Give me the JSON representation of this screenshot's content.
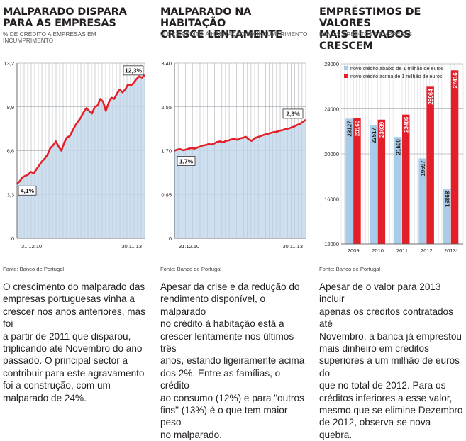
{
  "panels": [
    {
      "title_line1": "MALPARADO DISPARA",
      "title_line2": "PARA AS EMPRESAS",
      "subtitle": "% DE CRÉDITO A EMPRESAS EM INCUMPRIMENTO",
      "source": "Fonte: Banco de Portugal",
      "body": [
        "O crescimento do malparado das",
        "empresas portuguesas vinha a",
        "crescer nos anos anteriores, mas foi",
        "a partir de 2011 que disparou,",
        "triplicando até Novembro do ano",
        "passado. O principal sector a",
        "contribuir para este agravamento",
        "foi a construção, com um",
        "malparado de 24%."
      ]
    },
    {
      "title_line1": "MALPARADO NA HABITAÇÃO",
      "title_line2": "CRESCE LENTAMENTE",
      "subtitle": "% DE CRÉDITO À HABITAÇÃO EM INCUMPRIMENTO",
      "source": "Fonte: Banco de Portugal",
      "body": [
        "Apesar da crise e da redução do",
        "rendimento disponível, o malparado",
        "no crédito à habitação está a",
        "crescer lentamente nos últimos três",
        "anos, estando ligeiramente acima",
        "dos 2%. Entre as famílias, o crédito",
        "ao consumo (12%) e para \"outros",
        "fins\" (13%) é o que tem maior peso",
        "no malparado."
      ]
    },
    {
      "title_line1": "EMPRÉSTIMOS DE VALORES",
      "title_line2": "MAIS ELEVADOS CRESCEM",
      "subtitle": "NOVOS CRÉDITOS A EMPRESAS",
      "source": "Fonte: Banco de Portugal",
      "body": [
        "Apesar de o valor para 2013 incluir",
        "apenas os créditos contratados até",
        "Novembro, a banca já emprestou",
        "mais dinheiro em créditos",
        "superiores a um milhão de euros do",
        "que no total de 2012. Para os",
        "créditos inferiores a esse valor,",
        "mesmo que se elimine Dezembro",
        "de 2012, observa-se nova quebra."
      ]
    }
  ],
  "colors": {
    "red": "#e3202a",
    "area": "#c6d9ec",
    "blue": "#a9cde9",
    "grid": "#b5b9be",
    "text": "#231f20"
  },
  "chart_data": [
    {
      "type": "area",
      "title": "MALPARADO DISPARA PARA AS EMPRESAS",
      "ylabel": "% DE CRÉDITO A EMPRESAS EM INCUMPRIMENTO",
      "ylim": [
        0,
        13.2
      ],
      "yticks": [
        "13,2",
        "9,9",
        "6,6",
        "3,3",
        "0"
      ],
      "yticks_values": [
        13.2,
        9.9,
        6.6,
        3.3,
        0
      ],
      "x_start_label": "31.12.10",
      "x_end_label": "30.11.13",
      "grid": true,
      "values": [
        4.1,
        4.3,
        4.6,
        4.7,
        4.8,
        5.0,
        4.9,
        5.2,
        5.5,
        5.8,
        6.0,
        6.3,
        6.8,
        7.0,
        7.3,
        6.9,
        6.6,
        7.2,
        7.6,
        7.7,
        8.1,
        8.5,
        8.8,
        9.1,
        9.5,
        9.8,
        9.6,
        9.4,
        9.9,
        10.0,
        10.5,
        10.3,
        9.6,
        10.2,
        10.6,
        10.5,
        10.9,
        11.2,
        11.0,
        11.2,
        11.6,
        11.5,
        11.7,
        12.0,
        12.2,
        12.1,
        12.3
      ],
      "start_label": "4,1%",
      "end_label": "12,3%"
    },
    {
      "type": "area",
      "title": "MALPARADO NA HABITAÇÃO CRESCE LENTAMENTE",
      "ylabel": "% DE CRÉDITO À HABITAÇÃO EM INCUMPRIMENTO",
      "ylim": [
        0,
        3.4
      ],
      "yticks": [
        "3,40",
        "2,55",
        "1,70",
        "0,85",
        "0"
      ],
      "yticks_values": [
        3.4,
        2.55,
        1.7,
        0.85,
        0
      ],
      "x_start_label": "31.12.10",
      "x_end_label": "30.11.13",
      "grid": true,
      "values": [
        1.7,
        1.72,
        1.73,
        1.71,
        1.72,
        1.74,
        1.75,
        1.74,
        1.76,
        1.78,
        1.8,
        1.81,
        1.83,
        1.82,
        1.84,
        1.87,
        1.88,
        1.86,
        1.89,
        1.9,
        1.92,
        1.93,
        1.91,
        1.94,
        1.95,
        1.97,
        1.92,
        1.89,
        1.94,
        1.96,
        1.98,
        2.0,
        2.02,
        2.03,
        2.05,
        2.06,
        2.07,
        2.09,
        2.1,
        2.12,
        2.13,
        2.15,
        2.17,
        2.2,
        2.22,
        2.26,
        2.3
      ],
      "start_label": "1,7%",
      "end_label": "2,3%"
    },
    {
      "type": "bar",
      "title": "EMPRÉSTIMOS DE VALORES MAIS ELEVADOS CRESCEM",
      "ylabel": "NOVOS CRÉDITOS A EMPRESAS",
      "categories": [
        "2009",
        "2010",
        "2011",
        "2012",
        "2013*"
      ],
      "ylim": [
        12000,
        28000
      ],
      "yticks": [
        "28000",
        "24000",
        "20000",
        "16000",
        "12000"
      ],
      "yticks_values": [
        28000,
        24000,
        20000,
        16000,
        12000
      ],
      "grid": true,
      "legend_position": "top-left",
      "series": [
        {
          "name": "novo crédito abaixo de 1 milhão de euros",
          "values": [
            23127,
            22517,
            21500,
            19597,
            16868
          ],
          "labels": [
            "23127",
            "22517",
            "21500",
            "19597",
            "16868"
          ]
        },
        {
          "name": "novo crédito acima de 1 milhão de euros",
          "values": [
            23160,
            23039,
            23486,
            25964,
            27416
          ],
          "labels": [
            "23160",
            "23039",
            "23486",
            "25964",
            "27416"
          ]
        }
      ]
    }
  ]
}
